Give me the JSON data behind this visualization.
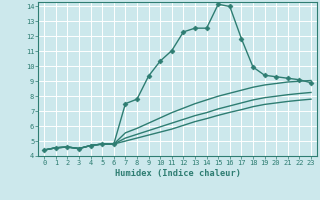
{
  "xlabel": "Humidex (Indice chaleur)",
  "xlim": [
    -0.5,
    23.5
  ],
  "ylim": [
    4,
    14.3
  ],
  "yticks": [
    4,
    5,
    6,
    7,
    8,
    9,
    10,
    11,
    12,
    13,
    14
  ],
  "xticks": [
    0,
    1,
    2,
    3,
    4,
    5,
    6,
    7,
    8,
    9,
    10,
    11,
    12,
    13,
    14,
    15,
    16,
    17,
    18,
    19,
    20,
    21,
    22,
    23
  ],
  "bg_color": "#cce8ec",
  "grid_color": "#b0d8de",
  "line_color": "#2e7d72",
  "lines": [
    {
      "x": [
        0,
        1,
        2,
        3,
        4,
        5,
        6,
        7,
        8,
        9,
        10,
        11,
        12,
        13,
        14,
        15,
        16,
        17,
        18,
        19,
        20,
        21,
        22,
        23
      ],
      "y": [
        4.4,
        4.55,
        4.6,
        4.5,
        4.7,
        4.8,
        4.8,
        7.5,
        7.8,
        9.35,
        10.35,
        11.05,
        12.3,
        12.55,
        12.55,
        14.15,
        14.0,
        11.85,
        9.95,
        9.4,
        9.3,
        9.2,
        9.1,
        8.9
      ],
      "markers": true
    },
    {
      "x": [
        0,
        1,
        2,
        3,
        4,
        5,
        6,
        7,
        8,
        9,
        10,
        11,
        12,
        13,
        14,
        15,
        16,
        17,
        18,
        19,
        20,
        21,
        22,
        23
      ],
      "y": [
        4.4,
        4.55,
        4.6,
        4.5,
        4.7,
        4.8,
        4.8,
        5.55,
        5.85,
        6.2,
        6.55,
        6.9,
        7.2,
        7.5,
        7.75,
        8.0,
        8.2,
        8.4,
        8.6,
        8.75,
        8.85,
        8.95,
        9.0,
        9.05
      ],
      "markers": false
    },
    {
      "x": [
        0,
        1,
        2,
        3,
        4,
        5,
        6,
        7,
        8,
        9,
        10,
        11,
        12,
        13,
        14,
        15,
        16,
        17,
        18,
        19,
        20,
        21,
        22,
        23
      ],
      "y": [
        4.4,
        4.55,
        4.6,
        4.5,
        4.7,
        4.8,
        4.8,
        5.2,
        5.45,
        5.7,
        5.95,
        6.2,
        6.45,
        6.7,
        6.9,
        7.15,
        7.35,
        7.55,
        7.75,
        7.9,
        8.0,
        8.1,
        8.18,
        8.25
      ],
      "markers": false
    },
    {
      "x": [
        0,
        1,
        2,
        3,
        4,
        5,
        6,
        7,
        8,
        9,
        10,
        11,
        12,
        13,
        14,
        15,
        16,
        17,
        18,
        19,
        20,
        21,
        22,
        23
      ],
      "y": [
        4.4,
        4.55,
        4.6,
        4.5,
        4.7,
        4.8,
        4.8,
        5.0,
        5.2,
        5.4,
        5.6,
        5.8,
        6.05,
        6.3,
        6.5,
        6.72,
        6.92,
        7.1,
        7.3,
        7.45,
        7.55,
        7.65,
        7.73,
        7.8
      ],
      "markers": false
    }
  ],
  "marker": "D",
  "markersize": 2.5,
  "linewidth": 1.0
}
